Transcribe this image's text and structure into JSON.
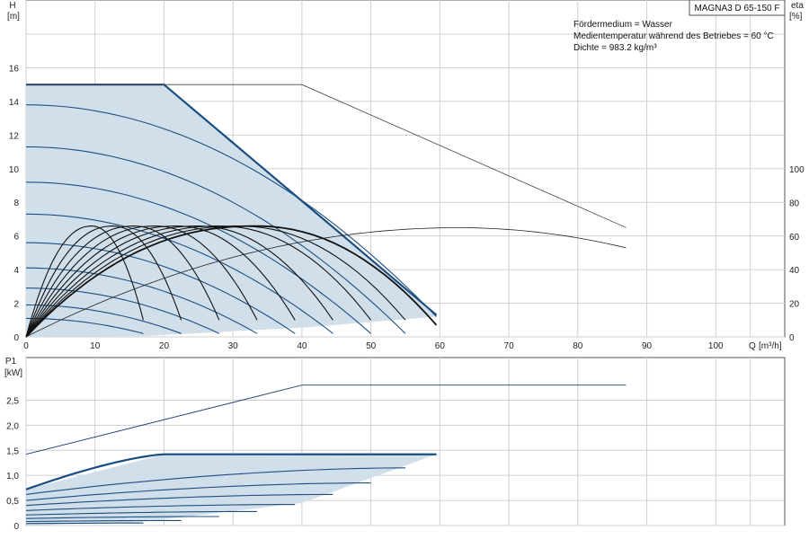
{
  "chart_data": [
    {
      "type": "line",
      "name": "head-efficiency-chart",
      "model_label": "MAGNA3 D 65-150 F",
      "info_lines": [
        "Fördermedium = Wasser",
        "Medientemperatur während des Betriebes = 60 °C",
        "Dichte = 983.2 kg/m³"
      ],
      "y_axis_left": {
        "title": "H",
        "unit": "[m]",
        "range": [
          0,
          16
        ],
        "ticks": [
          0,
          2,
          4,
          6,
          8,
          10,
          12,
          14,
          16
        ]
      },
      "y_axis_right": {
        "title": "eta",
        "unit": "[%]",
        "range": [
          0,
          100
        ],
        "ticks": [
          0,
          20,
          40,
          60,
          80,
          100
        ]
      },
      "x_axis": {
        "title": "Q",
        "unit": "[m³/h]",
        "range": [
          0,
          110
        ],
        "ticks": [
          0,
          10,
          20,
          30,
          40,
          50,
          60,
          70,
          80,
          90,
          100
        ]
      },
      "grid": true,
      "operating_area": [
        [
          0,
          15
        ],
        [
          20,
          15
        ],
        [
          59.5,
          1.3
        ],
        [
          0,
          0
        ]
      ],
      "max_curve": [
        [
          0,
          15
        ],
        [
          20,
          15
        ],
        [
          33,
          10.5
        ],
        [
          46,
          6
        ],
        [
          59.5,
          1.3
        ]
      ],
      "head_curves": [
        {
          "h0": 13.8,
          "qmax": 59.5
        },
        {
          "h0": 11.3,
          "qmax": 55
        },
        {
          "h0": 9.2,
          "qmax": 50
        },
        {
          "h0": 7.3,
          "qmax": 44.5
        },
        {
          "h0": 5.6,
          "qmax": 39
        },
        {
          "h0": 4.1,
          "qmax": 33.5
        },
        {
          "h0": 2.9,
          "qmax": 28
        },
        {
          "h0": 1.9,
          "qmax": 22.5
        },
        {
          "h0": 1.1,
          "qmax": 17
        }
      ],
      "efficiency_curves_qmax": [
        17,
        22.5,
        28,
        33.5,
        39,
        44.5,
        50,
        55,
        59.5
      ],
      "efficiency_peak_eta": 66,
      "twin_head_curve": [
        [
          0,
          15
        ],
        [
          40,
          15
        ],
        [
          87,
          6.5
        ]
      ],
      "twin_eta_curve": [
        [
          0,
          0
        ],
        [
          20,
          30
        ],
        [
          40,
          55
        ],
        [
          63,
          65
        ],
        [
          75,
          63
        ],
        [
          87,
          53
        ]
      ]
    },
    {
      "type": "line",
      "name": "power-chart",
      "y_axis": {
        "title": "P1",
        "unit": "[kW]",
        "range": [
          0,
          2.8
        ],
        "ticks": [
          0,
          0.5,
          1.0,
          1.5,
          2.0,
          2.5
        ],
        "tick_labels": [
          "0",
          "0,5",
          "1,0",
          "1,5",
          "2,0",
          "2,5"
        ]
      },
      "x_axis": {
        "range": [
          0,
          110
        ],
        "ticks": [
          0,
          10,
          20,
          30,
          40,
          50,
          60,
          70,
          80,
          90,
          100
        ]
      },
      "grid": true,
      "max_power_curve": [
        [
          0,
          0.72
        ],
        [
          20,
          1.42
        ],
        [
          59.5,
          1.42
        ]
      ],
      "power_area": [
        [
          0,
          0.72
        ],
        [
          20,
          1.42
        ],
        [
          59.5,
          1.42
        ],
        [
          40,
          0.45
        ],
        [
          16,
          0.06
        ],
        [
          0,
          0
        ]
      ],
      "power_curves": [
        {
          "p0": 0.62,
          "qmax": 55,
          "pmax": 1.15
        },
        {
          "p0": 0.5,
          "qmax": 50,
          "pmax": 0.85
        },
        {
          "p0": 0.4,
          "qmax": 44.5,
          "pmax": 0.62
        },
        {
          "p0": 0.3,
          "qmax": 39,
          "pmax": 0.42
        },
        {
          "p0": 0.21,
          "qmax": 33.5,
          "pmax": 0.28
        },
        {
          "p0": 0.14,
          "qmax": 28,
          "pmax": 0.18
        },
        {
          "p0": 0.08,
          "qmax": 22.5,
          "pmax": 0.1
        },
        {
          "p0": 0.04,
          "qmax": 17,
          "pmax": 0.05
        }
      ],
      "twin_power_curve": [
        [
          0,
          1.42
        ],
        [
          40,
          2.8
        ],
        [
          87,
          2.8
        ]
      ]
    }
  ]
}
